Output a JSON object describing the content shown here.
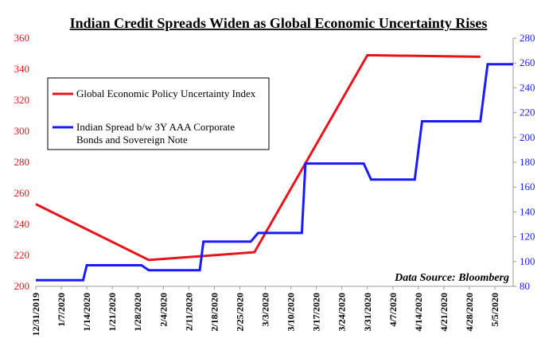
{
  "chart_data": {
    "type": "line",
    "title": "Indian Credit Spreads Widen as Global Economic Uncertainty Rises",
    "source_note": "Data Source: Bloomberg",
    "x_tick_labels": [
      "12/31/2019",
      "1/7/2020",
      "1/14/2020",
      "1/21/2020",
      "1/28/2020",
      "2/4/2020",
      "2/11/2020",
      "2/18/2020",
      "2/25/2020",
      "3/3/2020",
      "3/10/2020",
      "3/17/2020",
      "3/24/2020",
      "3/31/2020",
      "4/7/2020",
      "4/14/2020",
      "4/21/2020",
      "4/28/2020",
      "5/5/2020"
    ],
    "x_start": "2019-12-31",
    "x_end": "2020-05-10",
    "y_left": {
      "min": 200,
      "max": 360,
      "step": 20,
      "color": "#e8141b",
      "ticks": [
        "200",
        "220",
        "240",
        "260",
        "280",
        "300",
        "320",
        "340",
        "360"
      ]
    },
    "y_right": {
      "min": 80,
      "max": 280,
      "step": 20,
      "color": "#1a1aff",
      "ticks": [
        "80",
        "100",
        "120",
        "140",
        "160",
        "180",
        "200",
        "220",
        "240",
        "260",
        "280"
      ]
    },
    "legend": {
      "placement": "upper-left",
      "entries": [
        {
          "label_lines": [
            "Global Economic Policy Uncertainty Index"
          ],
          "color": "#e8141b"
        },
        {
          "label_lines": [
            "Indian Spread b/w 3Y AAA Corporate",
            "Bonds and Sovereign Note"
          ],
          "color": "#1a1aff"
        }
      ]
    },
    "series": [
      {
        "name": "Global Economic Policy Uncertainty Index",
        "axis": "left",
        "color": "#e8141b",
        "points": [
          [
            "2019-12-31",
            253
          ],
          [
            "2020-01-31",
            217
          ],
          [
            "2020-02-29",
            222
          ],
          [
            "2020-03-31",
            349
          ],
          [
            "2020-05-01",
            348
          ]
        ]
      },
      {
        "name": "Indian Spread b/w 3Y AAA Corporate Bonds and Sovereign Note",
        "axis": "right",
        "color": "#1a1aff",
        "points": [
          [
            "2019-12-31",
            85
          ],
          [
            "2020-01-13",
            85
          ],
          [
            "2020-01-14",
            97
          ],
          [
            "2020-01-29",
            97
          ],
          [
            "2020-01-31",
            93
          ],
          [
            "2020-02-14",
            93
          ],
          [
            "2020-02-15",
            116
          ],
          [
            "2020-02-28",
            116
          ],
          [
            "2020-03-01",
            123
          ],
          [
            "2020-03-13",
            123
          ],
          [
            "2020-03-14",
            179
          ],
          [
            "2020-03-30",
            179
          ],
          [
            "2020-04-01",
            166
          ],
          [
            "2020-04-13",
            166
          ],
          [
            "2020-04-15",
            213
          ],
          [
            "2020-05-01",
            213
          ],
          [
            "2020-05-03",
            259
          ],
          [
            "2020-05-10",
            259
          ]
        ]
      }
    ]
  }
}
